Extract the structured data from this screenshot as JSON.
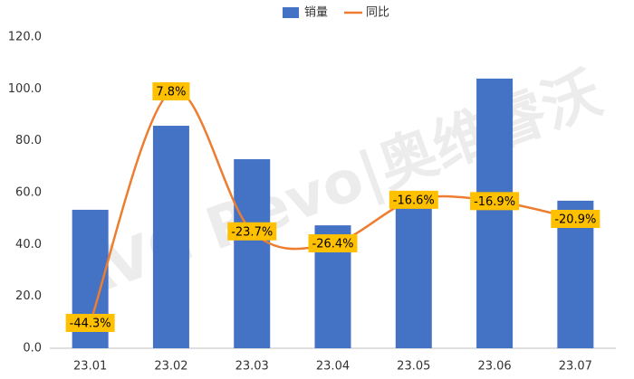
{
  "chart_data": {
    "type": "bar_line",
    "categories": [
      "23.01",
      "23.02",
      "23.03",
      "23.04",
      "23.05",
      "23.06",
      "23.07"
    ],
    "series": [
      {
        "name": "销量",
        "color": "#4472c4",
        "type": "bar",
        "values": [
          53.4,
          85.8,
          72.9,
          47.4,
          56.0,
          104.0,
          56.9
        ]
      },
      {
        "name": "同比",
        "color": "#ed7d31",
        "type": "line",
        "axis": "y2",
        "values": [
          -44.3,
          7.8,
          -23.7,
          -26.4,
          -16.6,
          -16.9,
          -20.9
        ],
        "value_labels": [
          "-44.3%",
          "7.8%",
          "-23.7%",
          "-26.4%",
          "-16.6%",
          "-16.9%",
          "-20.9%"
        ]
      }
    ],
    "ylim": [
      0,
      120
    ],
    "yticks": [
      {
        "value": 0,
        "label": "0.0"
      },
      {
        "value": 20,
        "label": "20.0"
      },
      {
        "value": 40,
        "label": "40.0"
      },
      {
        "value": 60,
        "label": "60.0"
      },
      {
        "value": 80,
        "label": "80.0"
      },
      {
        "value": 100,
        "label": "100.0"
      },
      {
        "value": 120,
        "label": "120.0"
      }
    ],
    "y2lim": [
      -50,
      20
    ],
    "grid": false,
    "legend": "top",
    "watermark": "AVC Revo|奥维睿沃"
  }
}
